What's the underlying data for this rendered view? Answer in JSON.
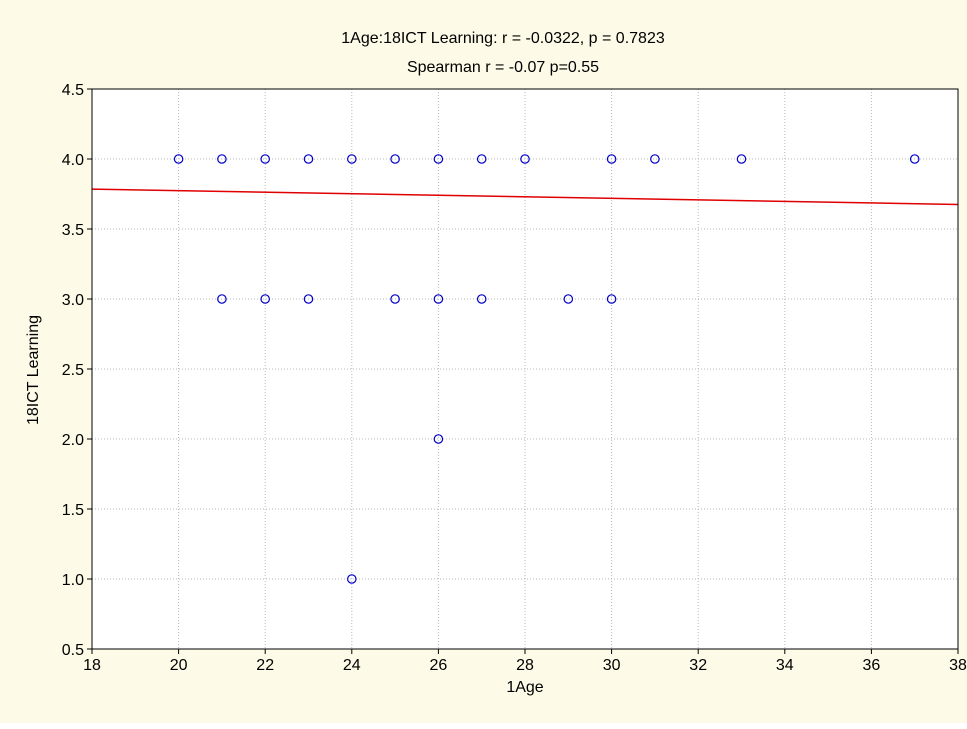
{
  "chart_data": {
    "type": "scatter",
    "title": "1Age:18ICT Learning:    r = -0.0322, p = 0.7823",
    "subtitle": "Spearman r = -0.07 p=0.55",
    "xlabel": "1Age",
    "ylabel": "18ICT Learning",
    "xlim": [
      18,
      38
    ],
    "ylim": [
      0.5,
      4.5
    ],
    "x_ticks": [
      "18",
      "20",
      "22",
      "24",
      "26",
      "28",
      "30",
      "32",
      "34",
      "36",
      "38"
    ],
    "y_ticks": [
      "0.5",
      "1.0",
      "1.5",
      "2.0",
      "2.5",
      "3.0",
      "3.5",
      "4.0",
      "4.5"
    ],
    "grid": true,
    "points": [
      {
        "x": 20,
        "y": 4.0
      },
      {
        "x": 21,
        "y": 4.0
      },
      {
        "x": 22,
        "y": 4.0
      },
      {
        "x": 23,
        "y": 4.0
      },
      {
        "x": 24,
        "y": 4.0
      },
      {
        "x": 25,
        "y": 4.0
      },
      {
        "x": 26,
        "y": 4.0
      },
      {
        "x": 27,
        "y": 4.0
      },
      {
        "x": 28,
        "y": 4.0
      },
      {
        "x": 30,
        "y": 4.0
      },
      {
        "x": 31,
        "y": 4.0
      },
      {
        "x": 33,
        "y": 4.0
      },
      {
        "x": 37,
        "y": 4.0
      },
      {
        "x": 21,
        "y": 3.0
      },
      {
        "x": 22,
        "y": 3.0
      },
      {
        "x": 23,
        "y": 3.0
      },
      {
        "x": 25,
        "y": 3.0
      },
      {
        "x": 26,
        "y": 3.0
      },
      {
        "x": 27,
        "y": 3.0
      },
      {
        "x": 29,
        "y": 3.0
      },
      {
        "x": 30,
        "y": 3.0
      },
      {
        "x": 26,
        "y": 2.0
      },
      {
        "x": 24,
        "y": 1.0
      }
    ],
    "fit_line": {
      "x": [
        18,
        38
      ],
      "y": [
        3.785,
        3.675
      ]
    },
    "colors": {
      "points": "#0000cc",
      "fit_line": "#e00000",
      "background": "#fdfbe7"
    }
  }
}
